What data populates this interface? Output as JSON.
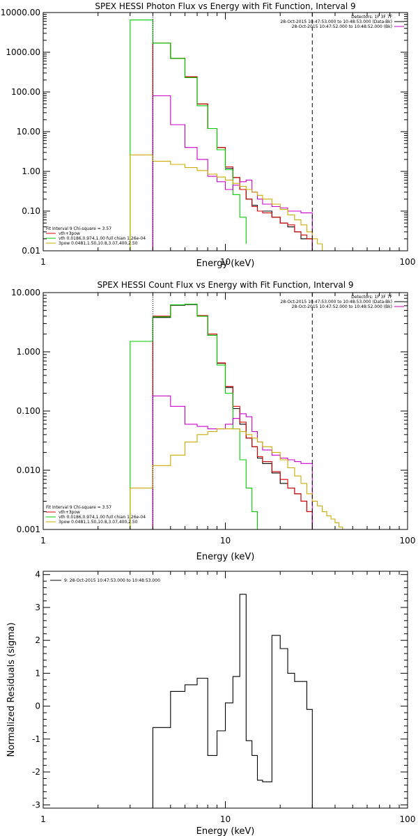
{
  "chart_data": [
    {
      "type": "line",
      "title": "SPEX HESSI Photon Flux vs Energy with Fit Function, Interval 9",
      "xlabel": "Energy (keV)",
      "ylabel": "",
      "xscale": "log",
      "yscale": "log",
      "xlim": [
        1,
        100
      ],
      "ylim": [
        0.01,
        10000
      ],
      "xticks": [
        1,
        10,
        100
      ],
      "xtick_labels": [
        "1",
        "10",
        "100"
      ],
      "yticks": [
        0.01,
        0.1,
        1,
        10,
        100,
        1000,
        10000
      ],
      "ytick_labels": [
        "0.01",
        "0.10",
        "1.00",
        "10.00",
        "100.00",
        "1000.00",
        "10000.00"
      ],
      "vlines": [
        {
          "x": 4.0,
          "style": "dotted"
        },
        {
          "x": 30.0,
          "style": "dashed"
        }
      ],
      "legend_topright": [
        {
          "text": "Detectors: 1F 3F 7F",
          "color": "#000000"
        },
        {
          "text": "28-Oct-2015 10:47:53.000 to 10:48:53.000 (Data-Bk)",
          "color": "#000000"
        },
        {
          "text": "28-Oct-2015 10:47:52.000 to 10:48:52.000 (Bk)",
          "color": "#cc00cc"
        }
      ],
      "legend_bottomleft": [
        {
          "text": "Fit Interval 9   Chi-square = 3.57",
          "color": "#000000"
        },
        {
          "text": "vth+3pow",
          "color": "#dd0000"
        },
        {
          "text": "vth 0.0186,0.974,1.00  full chian 1.26e-04",
          "color": "#00cc00"
        },
        {
          "text": "3pow 0.0481,1.50,10.8,3.07,400,2.50",
          "color": "#ccaa00"
        }
      ],
      "series": [
        {
          "color": "#000000",
          "edges": [
            4,
            5,
            6,
            7,
            8,
            9,
            10,
            11,
            12,
            13,
            14,
            15,
            16,
            18,
            20,
            22,
            24,
            26,
            28,
            30
          ],
          "values": [
            1700,
            700,
            240,
            50,
            12,
            4,
            1.2,
            0.7,
            0.35,
            0.2,
            0.14,
            0.1,
            0.1,
            0.07,
            0.05,
            0.04,
            0.03,
            0.02,
            0.02
          ]
        },
        {
          "color": "#dd0000",
          "edges": [
            4,
            5,
            6,
            7,
            8,
            9,
            10,
            11,
            12,
            13,
            14,
            15,
            16,
            18,
            20,
            22,
            24,
            26,
            28,
            30
          ],
          "values": [
            1700,
            700,
            240,
            50,
            12,
            4,
            1.3,
            0.7,
            0.35,
            0.2,
            0.13,
            0.1,
            0.09,
            0.07,
            0.05,
            0.045,
            0.03,
            0.025,
            0.02
          ]
        },
        {
          "color": "#00cc00",
          "edges": [
            3,
            4,
            5,
            6,
            7,
            8,
            9,
            10,
            11,
            12,
            13
          ],
          "values": [
            6500,
            1700,
            700,
            230,
            45,
            12,
            3.5,
            1.1,
            0.26,
            0.07,
            0.015
          ]
        },
        {
          "color": "#cc00cc",
          "edges": [
            4,
            5,
            6,
            7,
            8,
            9,
            10,
            11,
            12,
            13,
            14,
            15,
            16,
            18,
            20,
            22,
            24,
            26,
            28,
            30
          ],
          "values": [
            80,
            15,
            4,
            2,
            0.75,
            0.55,
            0.35,
            0.45,
            0.55,
            0.6,
            0.3,
            0.2,
            0.15,
            0.13,
            0.12,
            0.1,
            0.1,
            0.09,
            0.09
          ]
        },
        {
          "color": "#ccaa00",
          "edges": [
            3,
            4,
            5,
            6,
            7,
            8,
            9,
            10,
            11,
            12,
            13,
            14,
            15,
            16,
            18,
            20,
            22,
            24,
            26,
            28,
            30,
            32,
            34,
            36
          ],
          "values": [
            2.6,
            1.8,
            1.5,
            1.25,
            1.05,
            0.85,
            0.72,
            0.6,
            0.5,
            0.42,
            0.35,
            0.3,
            0.25,
            0.2,
            0.15,
            0.11,
            0.08,
            0.06,
            0.045,
            0.03,
            0.02,
            0.015,
            0.01
          ]
        }
      ]
    },
    {
      "type": "line",
      "title": "SPEX HESSI Count Flux vs Energy with Fit Function, Interval 9",
      "xlabel": "Energy (keV)",
      "ylabel": "",
      "xscale": "log",
      "yscale": "log",
      "xlim": [
        1,
        100
      ],
      "ylim": [
        0.001,
        10
      ],
      "xticks": [
        1,
        10,
        100
      ],
      "xtick_labels": [
        "1",
        "10",
        "100"
      ],
      "yticks": [
        0.001,
        0.01,
        0.1,
        1,
        10
      ],
      "ytick_labels": [
        "0.001",
        "0.010",
        "0.100",
        "1.000",
        "10.000"
      ],
      "vlines": [
        {
          "x": 4.0,
          "style": "dotted"
        },
        {
          "x": 30.0,
          "style": "dashed"
        }
      ],
      "legend_topright": [
        {
          "text": "Detectors: 1F 3F 7F",
          "color": "#000000"
        },
        {
          "text": "28-Oct-2015 10:47:53.000 to 10:48:53.000 (Data-Bk)",
          "color": "#000000"
        },
        {
          "text": "28-Oct-2015 10:47:52.000 to 10:48:52.000 (Bk)",
          "color": "#cc00cc"
        }
      ],
      "legend_bottomleft": [
        {
          "text": "Fit Interval 9   Chi-square = 3.57",
          "color": "#000000"
        },
        {
          "text": "vth+3pow",
          "color": "#dd0000"
        },
        {
          "text": "vth 0.0186,0.974,1.00  full chian 1.26e-04",
          "color": "#00cc00"
        },
        {
          "text": "3pow 0.0481,1.50,10.8,3.07,400,2.50",
          "color": "#ccaa00"
        }
      ],
      "series": [
        {
          "color": "#000000",
          "edges": [
            4,
            5,
            6,
            7,
            8,
            9,
            10,
            11,
            12,
            13,
            14,
            15,
            16,
            18,
            20,
            22,
            24,
            26,
            28,
            30
          ],
          "values": [
            3.8,
            6.1,
            6.3,
            4.0,
            1.9,
            0.64,
            0.25,
            0.11,
            0.06,
            0.035,
            0.025,
            0.016,
            0.013,
            0.009,
            0.006,
            0.005,
            0.004,
            0.003,
            0.002
          ]
        },
        {
          "color": "#dd0000",
          "edges": [
            4,
            5,
            6,
            7,
            8,
            9,
            10,
            11,
            12,
            13,
            14,
            15,
            16,
            18,
            20,
            22,
            24,
            26,
            28,
            30
          ],
          "values": [
            4.0,
            6.2,
            6.4,
            4.1,
            2.0,
            0.65,
            0.26,
            0.12,
            0.065,
            0.035,
            0.025,
            0.017,
            0.014,
            0.0095,
            0.007,
            0.005,
            0.004,
            0.003,
            0.002
          ]
        },
        {
          "color": "#00cc00",
          "edges": [
            3,
            4,
            5,
            6,
            7,
            8,
            9,
            10,
            11,
            12,
            13,
            14,
            15
          ],
          "values": [
            1.5,
            3.9,
            6.2,
            6.4,
            4.0,
            1.9,
            0.6,
            0.2,
            0.05,
            0.015,
            0.005,
            0.002
          ]
        },
        {
          "color": "#cc00cc",
          "edges": [
            4,
            5,
            6,
            7,
            8,
            9,
            10,
            11,
            12,
            13,
            14,
            15,
            16,
            18,
            20,
            22,
            24,
            26,
            28,
            30
          ],
          "values": [
            0.18,
            0.12,
            0.06,
            0.055,
            0.05,
            0.05,
            0.06,
            0.075,
            0.09,
            0.08,
            0.045,
            0.03,
            0.022,
            0.018,
            0.016,
            0.015,
            0.014,
            0.013,
            0.013
          ]
        },
        {
          "color": "#ccaa00",
          "edges": [
            3,
            4,
            5,
            6,
            7,
            8,
            9,
            10,
            11,
            12,
            13,
            14,
            15,
            16,
            18,
            20,
            22,
            24,
            26,
            28,
            30,
            32,
            34,
            36,
            38,
            40,
            42,
            44,
            46
          ],
          "values": [
            0.005,
            0.012,
            0.018,
            0.03,
            0.04,
            0.045,
            0.05,
            0.05,
            0.05,
            0.045,
            0.04,
            0.035,
            0.03,
            0.025,
            0.02,
            0.015,
            0.011,
            0.008,
            0.006,
            0.004,
            0.003,
            0.0025,
            0.002,
            0.0017,
            0.0015,
            0.0013,
            0.0011,
            0.001
          ]
        }
      ]
    },
    {
      "type": "line",
      "title": "",
      "xlabel": "Energy (keV)",
      "ylabel": "Normalized Residuals (sigma)",
      "xscale": "log",
      "yscale": "linear",
      "xlim": [
        1,
        100
      ],
      "ylim": [
        -3.1,
        4.1
      ],
      "xticks": [
        1,
        10,
        100
      ],
      "xtick_labels": [
        "1",
        "10",
        "100"
      ],
      "yticks": [
        -3,
        -2,
        -1,
        0,
        1,
        2,
        3,
        4
      ],
      "ytick_labels": [
        "-3",
        "-2",
        "-1",
        "0",
        "1",
        "2",
        "3",
        "4"
      ],
      "legend_topleft": [
        {
          "text": "9: 28-Oct-2015 10:47:53.000 to 10:48:53.000",
          "color": "#000000"
        }
      ],
      "series": [
        {
          "color": "#000000",
          "edges": [
            4,
            5,
            6,
            7,
            8,
            9,
            10,
            11,
            12,
            13,
            14,
            15,
            16,
            18,
            20,
            22,
            24,
            26,
            28,
            30
          ],
          "values": [
            -0.65,
            0.45,
            0.65,
            0.85,
            -1.5,
            -0.75,
            0.1,
            0.9,
            3.4,
            -1.05,
            -1.5,
            -2.25,
            -2.3,
            2.15,
            1.75,
            1.0,
            0.75,
            0.75,
            -0.1
          ]
        }
      ]
    }
  ]
}
